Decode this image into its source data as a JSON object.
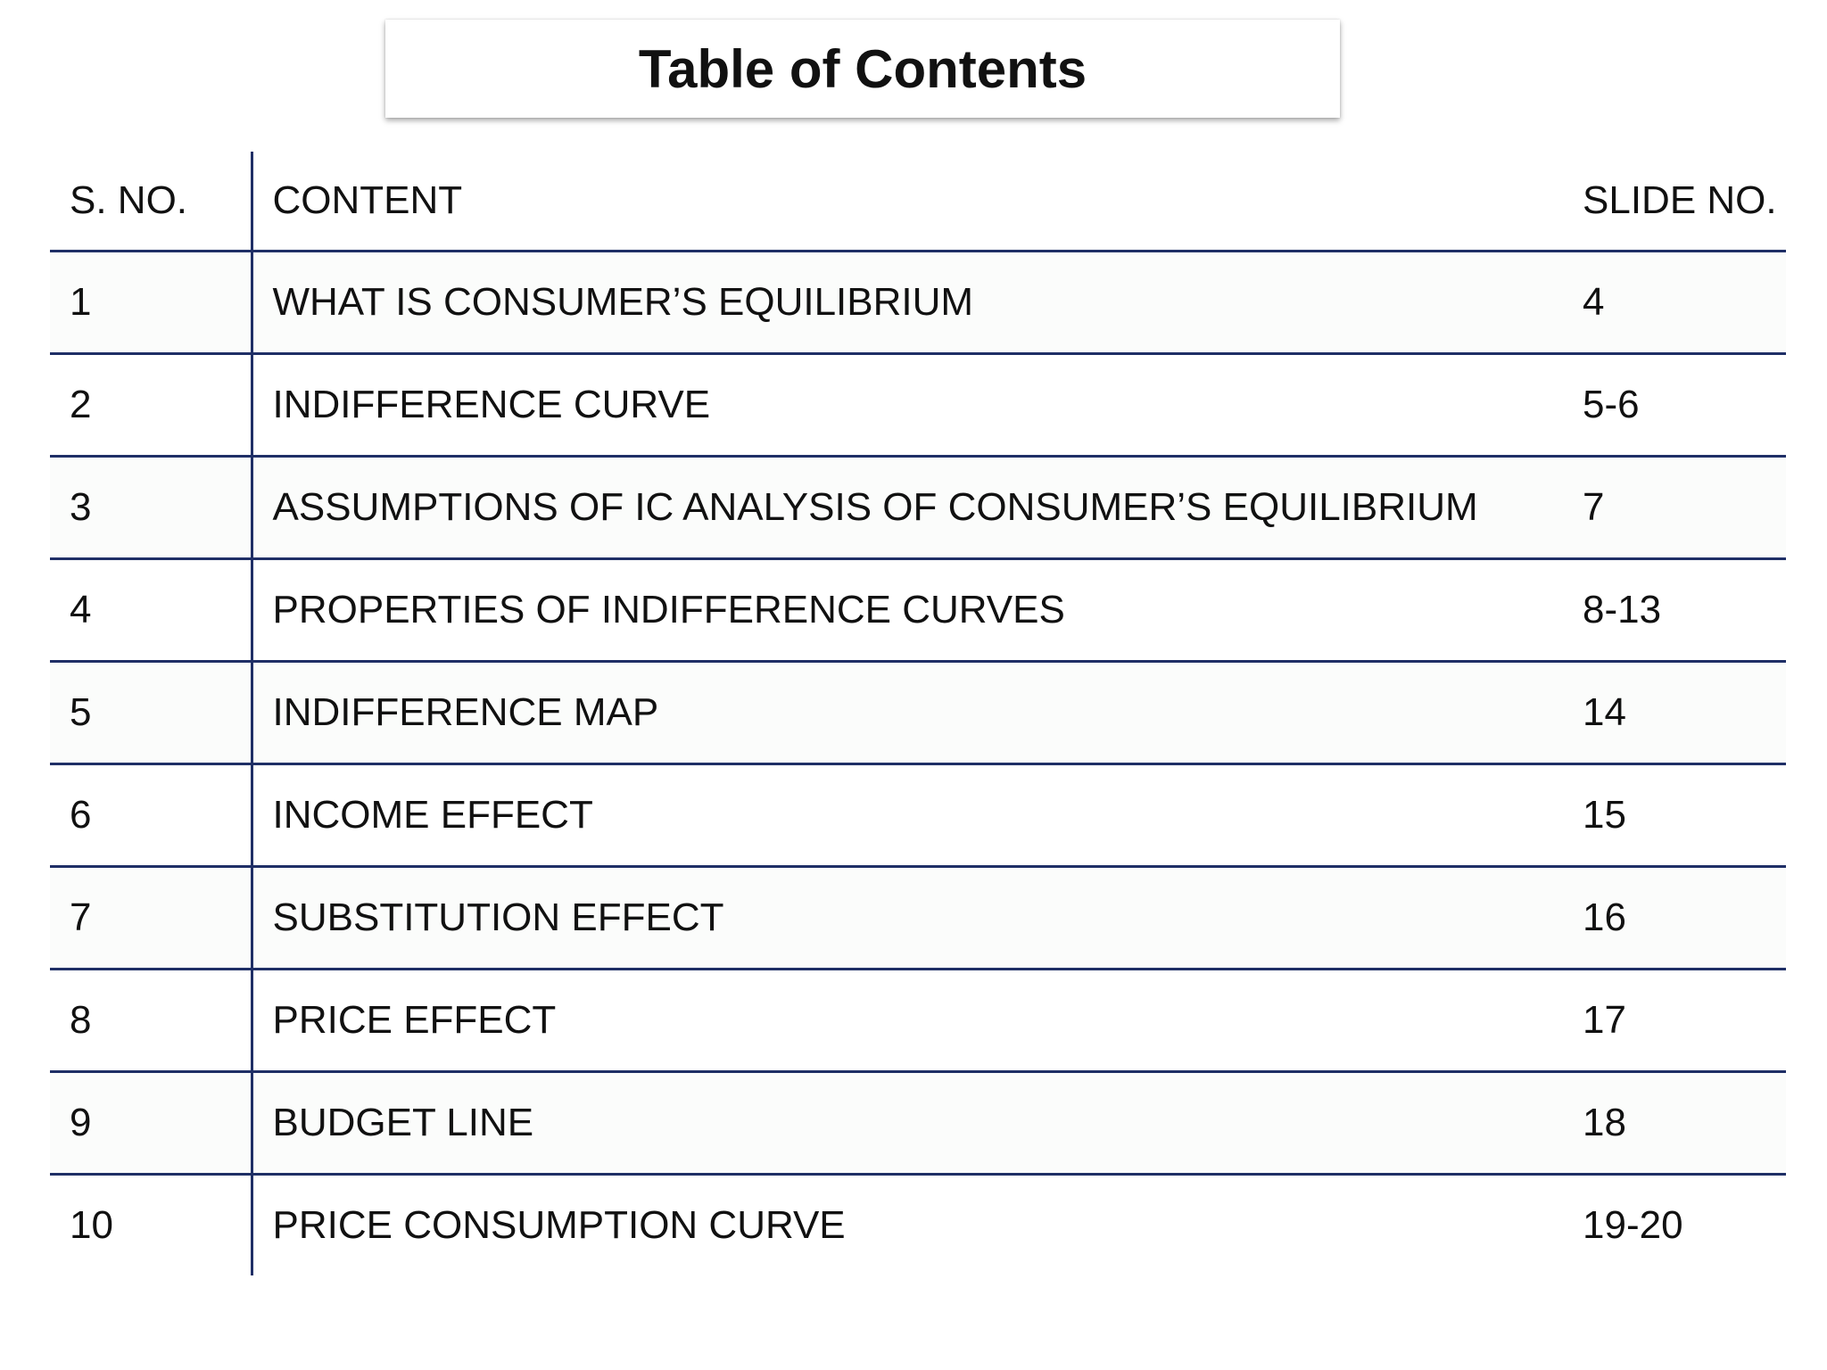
{
  "title": "Table of Contents",
  "table": {
    "headers": {
      "sno": "S. NO.",
      "content": "CONTENT",
      "slide": "SLIDE NO."
    },
    "rows": [
      {
        "sno": "1",
        "content": "WHAT IS CONSUMER’S EQUILIBRIUM",
        "slide": "4"
      },
      {
        "sno": "2",
        "content": "INDIFFERENCE CURVE",
        "slide": "5-6"
      },
      {
        "sno": "3",
        "content": "ASSUMPTIONS OF IC ANALYSIS OF CONSUMER’S EQUILIBRIUM",
        "slide": "7"
      },
      {
        "sno": "4",
        "content": "PROPERTIES OF INDIFFERENCE CURVES",
        "slide": "8-13"
      },
      {
        "sno": "5",
        "content": "INDIFFERENCE MAP",
        "slide": "14"
      },
      {
        "sno": "6",
        "content": "INCOME EFFECT",
        "slide": "15"
      },
      {
        "sno": "7",
        "content": "SUBSTITUTION EFFECT",
        "slide": "16"
      },
      {
        "sno": "8",
        "content": "PRICE EFFECT",
        "slide": "17"
      },
      {
        "sno": "9",
        "content": "BUDGET LINE",
        "slide": "18"
      },
      {
        "sno": "10",
        "content": "PRICE CONSUMPTION CURVE",
        "slide": "19-20"
      }
    ]
  },
  "colors": {
    "rule": "#1f2f66",
    "text": "#111111",
    "background": "#ffffff"
  }
}
